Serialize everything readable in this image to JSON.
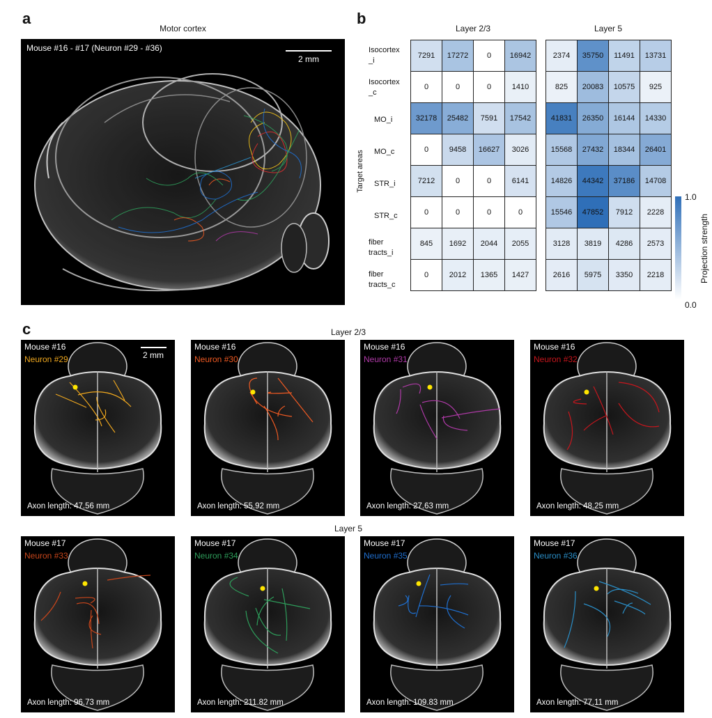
{
  "panel_a": {
    "letter": "a",
    "caption": "Motor cortex",
    "subtitle": "Mouse #16 - #17 (Neuron #29 - #36)",
    "scale_label": "2 mm"
  },
  "panel_b": {
    "letter": "b",
    "group_labels": [
      "Layer 2/3",
      "Layer 5"
    ],
    "y_axis_label": "Target areas",
    "colorbar_label": "Projection strength",
    "colorbar_max": "1.0",
    "colorbar_min": "0.0"
  },
  "chart_data": {
    "type": "heatmap",
    "rows": [
      "Isocortex_i",
      "Isocortex_c",
      "MO_i",
      "MO_c",
      "STR_i",
      "STR_c",
      "fiber tracts_i",
      "fiber tracts_c"
    ],
    "row_labels": [
      [
        "Isocortex",
        "_i"
      ],
      [
        "Isocortex",
        "_c"
      ],
      [
        "MO_i"
      ],
      [
        "MO_c"
      ],
      [
        "STR_i"
      ],
      [
        "STR_c"
      ],
      [
        "fiber",
        "tracts_i"
      ],
      [
        "fiber",
        "tracts_c"
      ]
    ],
    "layer_23": [
      [
        7291,
        17272,
        0,
        16942
      ],
      [
        0,
        0,
        0,
        1410
      ],
      [
        32178,
        25482,
        7591,
        17542
      ],
      [
        0,
        9458,
        16627,
        3026
      ],
      [
        7212,
        0,
        0,
        6141
      ],
      [
        0,
        0,
        0,
        0
      ],
      [
        845,
        1692,
        2044,
        2055
      ],
      [
        0,
        2012,
        1365,
        1427
      ]
    ],
    "layer_5": [
      [
        2374,
        35750,
        11491,
        13731
      ],
      [
        825,
        20083,
        10575,
        925
      ],
      [
        41831,
        26350,
        16144,
        14330
      ],
      [
        15568,
        27432,
        18344,
        26401
      ],
      [
        14826,
        44342,
        37186,
        14708
      ],
      [
        15546,
        47852,
        7912,
        2228
      ],
      [
        3128,
        3819,
        4286,
        2573
      ],
      [
        2616,
        5975,
        3350,
        2218
      ]
    ],
    "colormap": [
      "#ffffff",
      "#2f6fb8"
    ]
  },
  "panel_c": {
    "letter": "c",
    "row_labels": [
      "Layer 2/3",
      "Layer 5"
    ],
    "scale_label": "2 mm",
    "neurons": [
      {
        "mouse": "Mouse #16",
        "neuron": "Neuron #29",
        "axon": "Axon length: 47.56 mm",
        "color": "#f0a81e"
      },
      {
        "mouse": "Mouse #16",
        "neuron": "Neuron #30",
        "axon": "Axon length: 55.92 mm",
        "color": "#f05a22"
      },
      {
        "mouse": "Mouse #16",
        "neuron": "Neuron #31",
        "axon": "Axon length: 27.63 mm",
        "color": "#b03aa8"
      },
      {
        "mouse": "Mouse #16",
        "neuron": "Neuron #32",
        "axon": "Axon length: 48.25 mm",
        "color": "#c8161d"
      },
      {
        "mouse": "Mouse #17",
        "neuron": "Neuron #33",
        "axon": "Axon length: 96.73 mm",
        "color": "#c9461b"
      },
      {
        "mouse": "Mouse #17",
        "neuron": "Neuron #34",
        "axon": "Axon length: 211.82 mm",
        "color": "#2e9e5b"
      },
      {
        "mouse": "Mouse #17",
        "neuron": "Neuron #35",
        "axon": "Axon length: 109.83 mm",
        "color": "#1f6fcf"
      },
      {
        "mouse": "Mouse #17",
        "neuron": "Neuron #36",
        "axon": "Axon length: 77.11 mm",
        "color": "#2a8ec7"
      }
    ]
  }
}
